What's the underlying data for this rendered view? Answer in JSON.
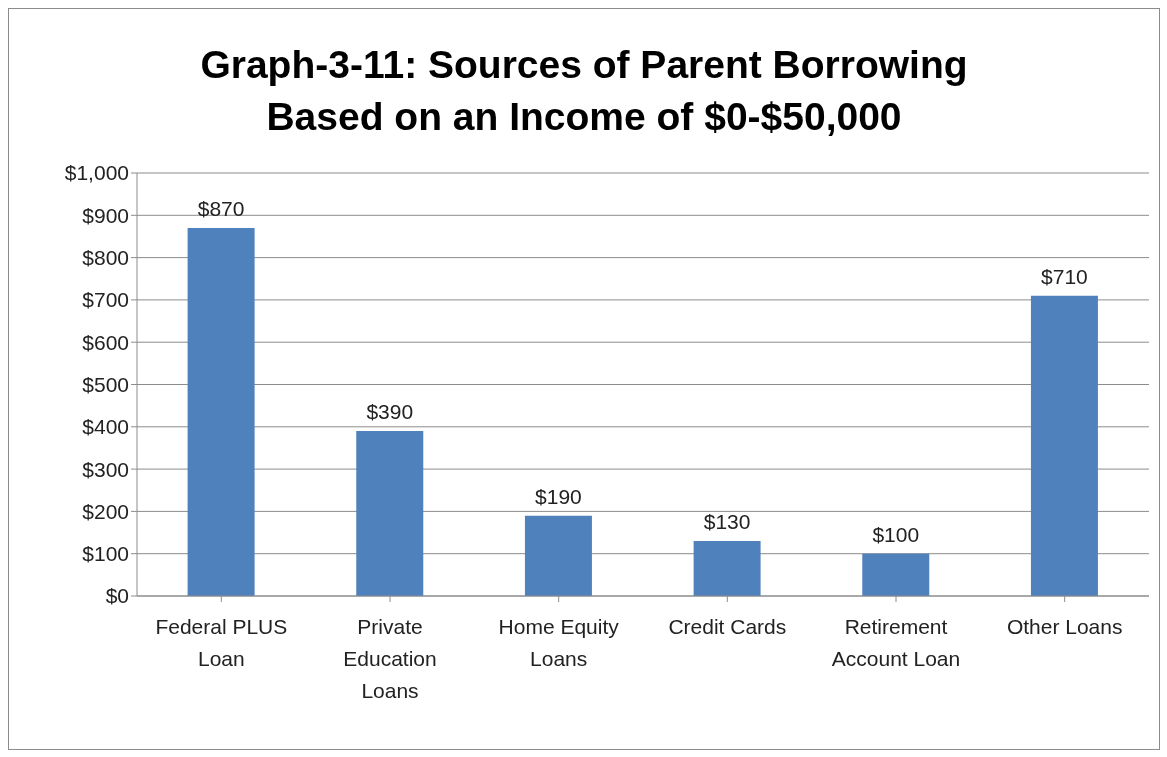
{
  "chart_data": {
    "type": "bar",
    "title": "Graph-3-11: Sources of Parent Borrowing Based on an Income of $0-$50,000",
    "categories": [
      "Federal PLUS Loan",
      "Private Education Loans",
      "Home Equity Loans",
      "Credit Cards",
      "Retirement Account Loan",
      "Other Loans"
    ],
    "values": [
      870,
      390,
      190,
      130,
      100,
      710
    ],
    "value_labels": [
      "$870",
      "$390",
      "$190",
      "$130",
      "$100",
      "$710"
    ],
    "color": "#4f81bd",
    "ylim": [
      0,
      1000
    ],
    "yticks": [
      {
        "value": 0,
        "label": "$0"
      },
      {
        "value": 100,
        "label": "$100"
      },
      {
        "value": 200,
        "label": "$200"
      },
      {
        "value": 300,
        "label": "$300"
      },
      {
        "value": 400,
        "label": "$400"
      },
      {
        "value": 500,
        "label": "$500"
      },
      {
        "value": 600,
        "label": "$600"
      },
      {
        "value": 700,
        "label": "$700"
      },
      {
        "value": 800,
        "label": "$800"
      },
      {
        "value": 900,
        "label": "$900"
      },
      {
        "value": 1000,
        "label": "$1,000"
      }
    ],
    "grid": "y"
  }
}
